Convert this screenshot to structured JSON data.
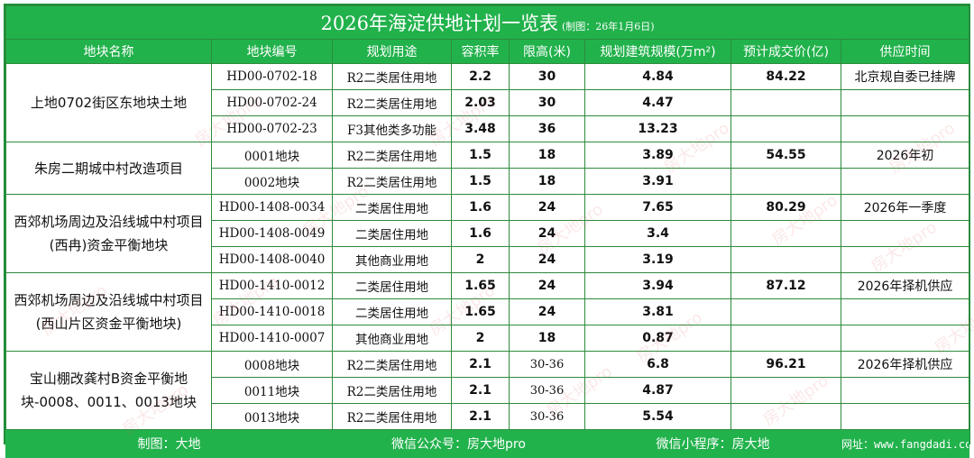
{
  "title": {
    "main": "2026年海淀供地计划一览表",
    "sub": "(制图：26年1月6日)"
  },
  "headers": [
    "地块名称",
    "地块编号",
    "规划用途",
    "容积率",
    "限高(米)",
    "规划建筑规模(万m²)",
    "预计成交价(亿)",
    "供应时间"
  ],
  "groups": [
    {
      "name": "上地0702街区东地块土地",
      "price": "84.22",
      "rows": [
        {
          "code": "HD00-0702-18",
          "usage": "R2二类居住用地",
          "far": "2.2",
          "height": "30",
          "scale": "4.84",
          "supply": "北京规自委已挂牌"
        },
        {
          "code": "HD00-0702-24",
          "usage": "R2二类居住用地",
          "far": "2.03",
          "height": "30",
          "scale": "4.47",
          "supply": ""
        },
        {
          "code": "HD00-0702-23",
          "usage": "F3其他类多功能",
          "far": "3.48",
          "height": "36",
          "scale": "13.23",
          "supply": ""
        }
      ]
    },
    {
      "name": "朱房二期城中村改造项目",
      "price": "54.55",
      "rows": [
        {
          "code": "0001地块",
          "usage": "R2二类居住用地",
          "far": "1.5",
          "height": "18",
          "scale": "3.89",
          "supply": "2026年初"
        },
        {
          "code": "0002地块",
          "usage": "R2二类居住用地",
          "far": "1.5",
          "height": "18",
          "scale": "3.91",
          "supply": ""
        }
      ]
    },
    {
      "name": "西郊机场周边及沿线城中村项目(西冉)资金平衡地块",
      "price": "80.29",
      "rows": [
        {
          "code": "HD00-1408-0034",
          "usage": "二类居住用地",
          "far": "1.6",
          "height": "24",
          "scale": "7.65",
          "supply": "2026年一季度"
        },
        {
          "code": "HD00-1408-0049",
          "usage": "二类居住用地",
          "far": "1.6",
          "height": "24",
          "scale": "3.4",
          "supply": ""
        },
        {
          "code": "HD00-1408-0040",
          "usage": "其他商业用地",
          "far": "2",
          "height": "24",
          "scale": "3.19",
          "supply": ""
        }
      ]
    },
    {
      "name": "西郊机场周边及沿线城中村项目(西山片区资金平衡地块)",
      "price": "87.12",
      "rows": [
        {
          "code": "HD00-1410-0012",
          "usage": "二类居住用地",
          "far": "1.65",
          "height": "24",
          "scale": "3.94",
          "supply": "2026年择机供应"
        },
        {
          "code": "HD00-1410-0018",
          "usage": "二类居住用地",
          "far": "1.65",
          "height": "24",
          "scale": "3.81",
          "supply": ""
        },
        {
          "code": "HD00-1410-0007",
          "usage": "其他商业用地",
          "far": "2",
          "height": "18",
          "scale": "0.87",
          "supply": ""
        }
      ]
    },
    {
      "name": "宝山棚改龚村B资金平衡地块-0008、0011、0013地块",
      "price": "96.21",
      "rows": [
        {
          "code": "0008地块",
          "usage": "R2二类居住用地",
          "far": "2.1",
          "height": "30-36",
          "scale": "6.8",
          "supply": "2026年择机供应"
        },
        {
          "code": "0011地块",
          "usage": "R2二类居住用地",
          "far": "2.1",
          "height": "30-36",
          "scale": "4.87",
          "supply": ""
        },
        {
          "code": "0013地块",
          "usage": "R2二类居住用地",
          "far": "2.1",
          "height": "30-36",
          "scale": "5.54",
          "supply": ""
        }
      ]
    }
  ],
  "footer": {
    "author": "制图：大地",
    "wechat": "微信公众号：房大地pro",
    "miniprogram": "微信小程序：房大地",
    "website": "网址：www.fangdadi.com"
  },
  "watermark": "房大地pro",
  "colors": {
    "header_green": "#22b24c",
    "border_green": "#2d8b3c",
    "watermark": "#e65a5a"
  }
}
